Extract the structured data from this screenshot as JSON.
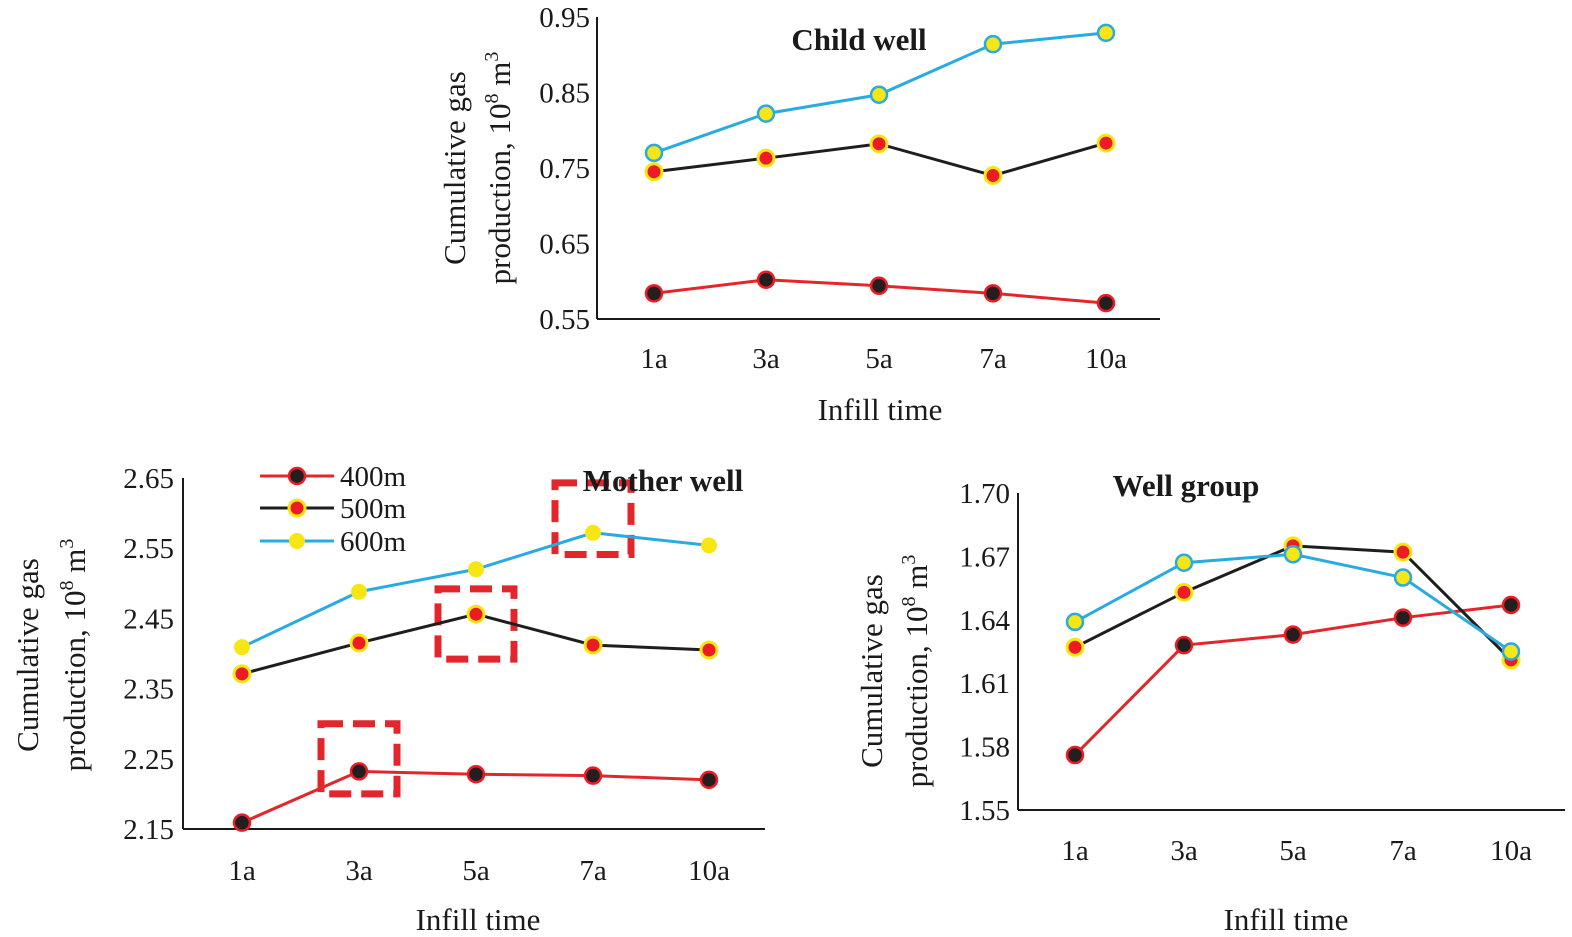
{
  "chart_data": [
    {
      "type": "line",
      "id": "child",
      "title": "Child well",
      "xlabel": "Infill time",
      "ylabel_line1": "Cumulative gas",
      "ylabel_line2": "production, 10",
      "ylabel_sup": "8",
      "ylabel_tail": " m",
      "ylabel_sup2": "3",
      "categories": [
        "1a",
        "3a",
        "5a",
        "7a",
        "10a"
      ],
      "ylim": [
        0.55,
        0.95
      ],
      "yticks": [
        "0.55",
        "0.65",
        "0.75",
        "0.85",
        "0.95"
      ],
      "series": [
        {
          "name": "400m",
          "values": [
            0.584,
            0.602,
            0.594,
            0.584,
            0.571
          ]
        },
        {
          "name": "500m",
          "values": [
            0.745,
            0.763,
            0.782,
            0.74,
            0.783
          ]
        },
        {
          "name": "600m",
          "values": [
            0.77,
            0.822,
            0.847,
            0.914,
            0.929
          ]
        }
      ]
    },
    {
      "type": "line",
      "id": "mother",
      "title": "Mother well",
      "xlabel": "Infill time",
      "ylabel_line1": "Cumulative gas",
      "ylabel_line2": "production, 10",
      "ylabel_sup": "8",
      "ylabel_tail": " m",
      "ylabel_sup2": "3",
      "categories": [
        "1a",
        "3a",
        "5a",
        "7a",
        "10a"
      ],
      "ylim": [
        2.15,
        2.65
      ],
      "yticks": [
        "2.15",
        "2.25",
        "2.35",
        "2.45",
        "2.55",
        "2.65"
      ],
      "legend": [
        "400m",
        "500m",
        "600m"
      ],
      "series": [
        {
          "name": "400m",
          "values": [
            2.159,
            2.232,
            2.228,
            2.226,
            2.22
          ]
        },
        {
          "name": "500m",
          "values": [
            2.371,
            2.415,
            2.456,
            2.412,
            2.405
          ]
        },
        {
          "name": "600m",
          "values": [
            2.409,
            2.488,
            2.52,
            2.572,
            2.554
          ]
        }
      ],
      "highlights": [
        {
          "category": "3a",
          "ylow": 2.2,
          "yhigh": 2.3
        },
        {
          "category": "5a",
          "ylow": 2.392,
          "yhigh": 2.492
        },
        {
          "category": "7a",
          "ylow": 2.541,
          "yhigh": 2.643
        }
      ]
    },
    {
      "type": "line",
      "id": "group",
      "title": "Well group",
      "xlabel": "Infill time",
      "ylabel_line1": "Cumulative gas",
      "ylabel_line2": "production, 10",
      "ylabel_sup": "8",
      "ylabel_tail": " m",
      "ylabel_sup2": "3",
      "categories": [
        "1a",
        "3a",
        "5a",
        "7a",
        "10a"
      ],
      "ylim": [
        1.55,
        1.7
      ],
      "yticks": [
        "1.55",
        "1.58",
        "1.61",
        "1.64",
        "1.67",
        "1.70"
      ],
      "series": [
        {
          "name": "400m",
          "values": [
            1.576,
            1.628,
            1.633,
            1.641,
            1.647
          ]
        },
        {
          "name": "500m",
          "values": [
            1.627,
            1.653,
            1.675,
            1.672,
            1.621
          ]
        },
        {
          "name": "600m",
          "values": [
            1.639,
            1.667,
            1.671,
            1.66,
            1.625
          ]
        }
      ]
    }
  ],
  "colors": {
    "line400": "#e3262b",
    "line500": "#1e1e1e",
    "line600": "#29abe2",
    "axis": "#1a1a1a",
    "marker_red": "#ed1c24",
    "marker_yellow": "#f5e614",
    "marker_black": "#231f20",
    "highlight": "#e3262b"
  }
}
